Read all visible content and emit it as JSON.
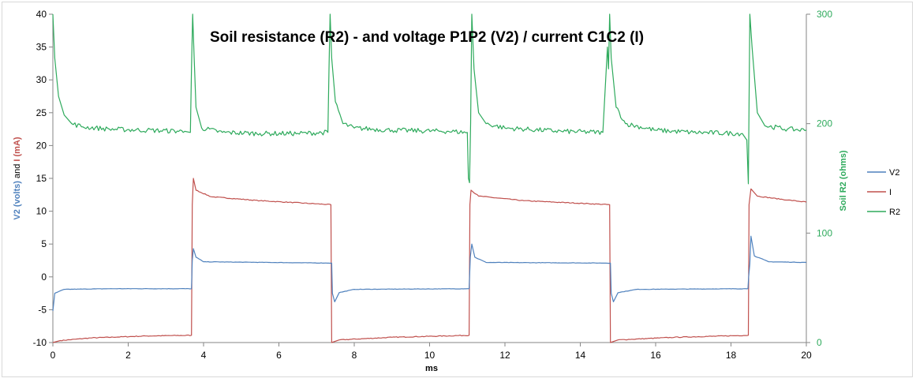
{
  "chart_data": {
    "type": "line",
    "title": "Soil resistance (R2) - and voltage P1P2 (V2) / current C1C2 (I)",
    "xlabel": "ms",
    "ylabel_left": [
      "V2 (volts)",
      " and ",
      "I (mA)"
    ],
    "ylabel_right": "Soil R2 (ohms)",
    "xlim": [
      0,
      20
    ],
    "ylim_left": [
      -10,
      40
    ],
    "ylim_right": [
      0,
      300
    ],
    "x_ticks": [
      "0",
      "2",
      "4",
      "6",
      "8",
      "10",
      "12",
      "14",
      "16",
      "18",
      "20"
    ],
    "y_left_ticks": [
      "-10",
      "-5",
      "0",
      "5",
      "10",
      "15",
      "20",
      "25",
      "30",
      "35",
      "40"
    ],
    "y_right_ticks": [
      "0",
      "100",
      "200",
      "300"
    ],
    "grid": false,
    "legend_position": "right",
    "colors": {
      "V2": "#4f81bd",
      "I": "#c0504d",
      "R2": "#2eaa5c"
    },
    "series": [
      {
        "name": "V2",
        "axis": "left",
        "segments": [
          [
            0,
            -5.2
          ],
          [
            0.05,
            -2.5
          ],
          [
            0.3,
            -1.9
          ],
          [
            1.5,
            -1.8
          ],
          [
            3.68,
            -1.8
          ],
          [
            3.7,
            2.5
          ],
          [
            3.73,
            4.3
          ],
          [
            3.8,
            3.0
          ],
          [
            4.0,
            2.3
          ],
          [
            7.4,
            2.1
          ],
          [
            7.42,
            -2.5
          ],
          [
            7.48,
            -3.8
          ],
          [
            7.6,
            -2.4
          ],
          [
            8.0,
            -1.9
          ],
          [
            11.05,
            -1.8
          ],
          [
            11.08,
            3.0
          ],
          [
            11.12,
            5.0
          ],
          [
            11.2,
            3.0
          ],
          [
            11.5,
            2.2
          ],
          [
            14.8,
            2.1
          ],
          [
            14.82,
            -2.5
          ],
          [
            14.88,
            -3.8
          ],
          [
            15.0,
            -2.4
          ],
          [
            15.5,
            -1.9
          ],
          [
            18.45,
            -1.8
          ],
          [
            18.47,
            0.0
          ],
          [
            18.5,
            2.0
          ],
          [
            18.53,
            6.2
          ],
          [
            18.62,
            3.2
          ],
          [
            19.0,
            2.3
          ],
          [
            20.0,
            2.2
          ]
        ]
      },
      {
        "name": "I",
        "axis": "left",
        "segments": [
          [
            0,
            -10
          ],
          [
            0.2,
            -9.7
          ],
          [
            1.0,
            -9.3
          ],
          [
            2.5,
            -9.0
          ],
          [
            3.68,
            -8.9
          ],
          [
            3.7,
            11.0
          ],
          [
            3.73,
            15.0
          ],
          [
            3.8,
            13.2
          ],
          [
            4.2,
            12.2
          ],
          [
            5.5,
            11.6
          ],
          [
            7.38,
            11.0
          ],
          [
            7.4,
            -10.0
          ],
          [
            7.6,
            -9.6
          ],
          [
            9.0,
            -9.2
          ],
          [
            11.05,
            -8.9
          ],
          [
            11.07,
            11.0
          ],
          [
            11.1,
            13.2
          ],
          [
            11.3,
            12.3
          ],
          [
            12.5,
            11.6
          ],
          [
            14.78,
            11.0
          ],
          [
            14.8,
            -10.0
          ],
          [
            15.0,
            -9.6
          ],
          [
            16.5,
            -9.2
          ],
          [
            18.46,
            -8.9
          ],
          [
            18.48,
            11.0
          ],
          [
            18.53,
            13.4
          ],
          [
            18.7,
            12.3
          ],
          [
            19.5,
            11.7
          ],
          [
            20.0,
            11.4
          ]
        ]
      },
      {
        "name": "R2",
        "axis": "right",
        "segments": [
          [
            0,
            300
          ],
          [
            0.05,
            260
          ],
          [
            0.15,
            225
          ],
          [
            0.3,
            208
          ],
          [
            0.5,
            200
          ],
          [
            0.8,
            197
          ],
          [
            1.5,
            195
          ],
          [
            2.5,
            194
          ],
          [
            3.5,
            193
          ],
          [
            3.65,
            192
          ],
          [
            3.68,
            250
          ],
          [
            3.71,
            300
          ],
          [
            3.75,
            260
          ],
          [
            3.8,
            215
          ],
          [
            3.95,
            196
          ],
          [
            4.5,
            192
          ],
          [
            5.5,
            191
          ],
          [
            6.5,
            191
          ],
          [
            7.3,
            192
          ],
          [
            7.33,
            250
          ],
          [
            7.36,
            300
          ],
          [
            7.4,
            260
          ],
          [
            7.5,
            220
          ],
          [
            7.7,
            200
          ],
          [
            8.0,
            196
          ],
          [
            9.0,
            194
          ],
          [
            10.5,
            193
          ],
          [
            11.0,
            192
          ],
          [
            11.03,
            150
          ],
          [
            11.06,
            146
          ],
          [
            11.09,
            200
          ],
          [
            11.12,
            300
          ],
          [
            11.18,
            250
          ],
          [
            11.3,
            210
          ],
          [
            11.5,
            200
          ],
          [
            12.0,
            196
          ],
          [
            13.5,
            193
          ],
          [
            14.6,
            192
          ],
          [
            14.72,
            270
          ],
          [
            14.75,
            250
          ],
          [
            14.78,
            300
          ],
          [
            14.82,
            260
          ],
          [
            14.95,
            215
          ],
          [
            15.2,
            200
          ],
          [
            16.0,
            194
          ],
          [
            17.0,
            192
          ],
          [
            18.3,
            191
          ],
          [
            18.42,
            185
          ],
          [
            18.46,
            145
          ],
          [
            18.5,
            300
          ],
          [
            18.56,
            270
          ],
          [
            18.7,
            210
          ],
          [
            18.9,
            198
          ],
          [
            19.5,
            195
          ],
          [
            20.0,
            194
          ]
        ]
      }
    ]
  }
}
